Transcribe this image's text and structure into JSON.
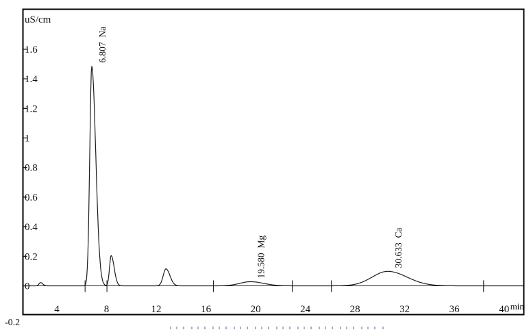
{
  "chart_data": {
    "type": "line",
    "chart_kind": "ion-chromatogram",
    "background": "#ffffff",
    "line_color": "#1c1c1c",
    "frame_color": "#000000",
    "y_axis": {
      "unit_label": "uS/cm",
      "tick_labels": [
        "-0.2",
        "0",
        "0.2",
        "0.4",
        "0.6",
        "0.8",
        "1",
        "1.2",
        "1.4",
        "1.6"
      ],
      "tick_values": [
        -0.2,
        0,
        0.2,
        0.4,
        0.6,
        0.8,
        1,
        1.2,
        1.4,
        1.6
      ],
      "range": [
        -0.2,
        1.87
      ],
      "grid": false
    },
    "x_axis": {
      "unit_label": "min",
      "tick_labels": [
        "4",
        "8",
        "12",
        "16",
        "20",
        "24",
        "28",
        "32",
        "36",
        "40"
      ],
      "tick_values": [
        4,
        8,
        12,
        16,
        20,
        24,
        28,
        32,
        36,
        40
      ],
      "range": [
        1.25,
        41.65
      ],
      "grid": false
    },
    "peaks": [
      {
        "time": 2.68,
        "height": 0.022,
        "sigma_left": 0.12,
        "sigma_right": 0.18,
        "rt_label": null,
        "name": null
      },
      {
        "time": 6.807,
        "height": 1.485,
        "sigma_left": 0.16,
        "sigma_right": 0.32,
        "rt_label": "6.807",
        "name": "Na"
      },
      {
        "time": 8.37,
        "height": 0.205,
        "sigma_left": 0.13,
        "sigma_right": 0.24,
        "rt_label": null,
        "name": null
      },
      {
        "time": 12.78,
        "height": 0.115,
        "sigma_left": 0.22,
        "sigma_right": 0.32,
        "rt_label": null,
        "name": null
      },
      {
        "time": 19.58,
        "height": 0.028,
        "sigma_left": 0.85,
        "sigma_right": 1.05,
        "rt_label": "19.580",
        "name": "Mg"
      },
      {
        "time": 30.633,
        "height": 0.098,
        "sigma_left": 1.25,
        "sigma_right": 1.55,
        "rt_label": "30.633",
        "name": "Ca"
      }
    ],
    "baseline_mark_times": [
      6.27,
      8.03,
      16.6,
      22.95,
      26.1,
      38.35
    ],
    "legend": null,
    "title": null
  }
}
